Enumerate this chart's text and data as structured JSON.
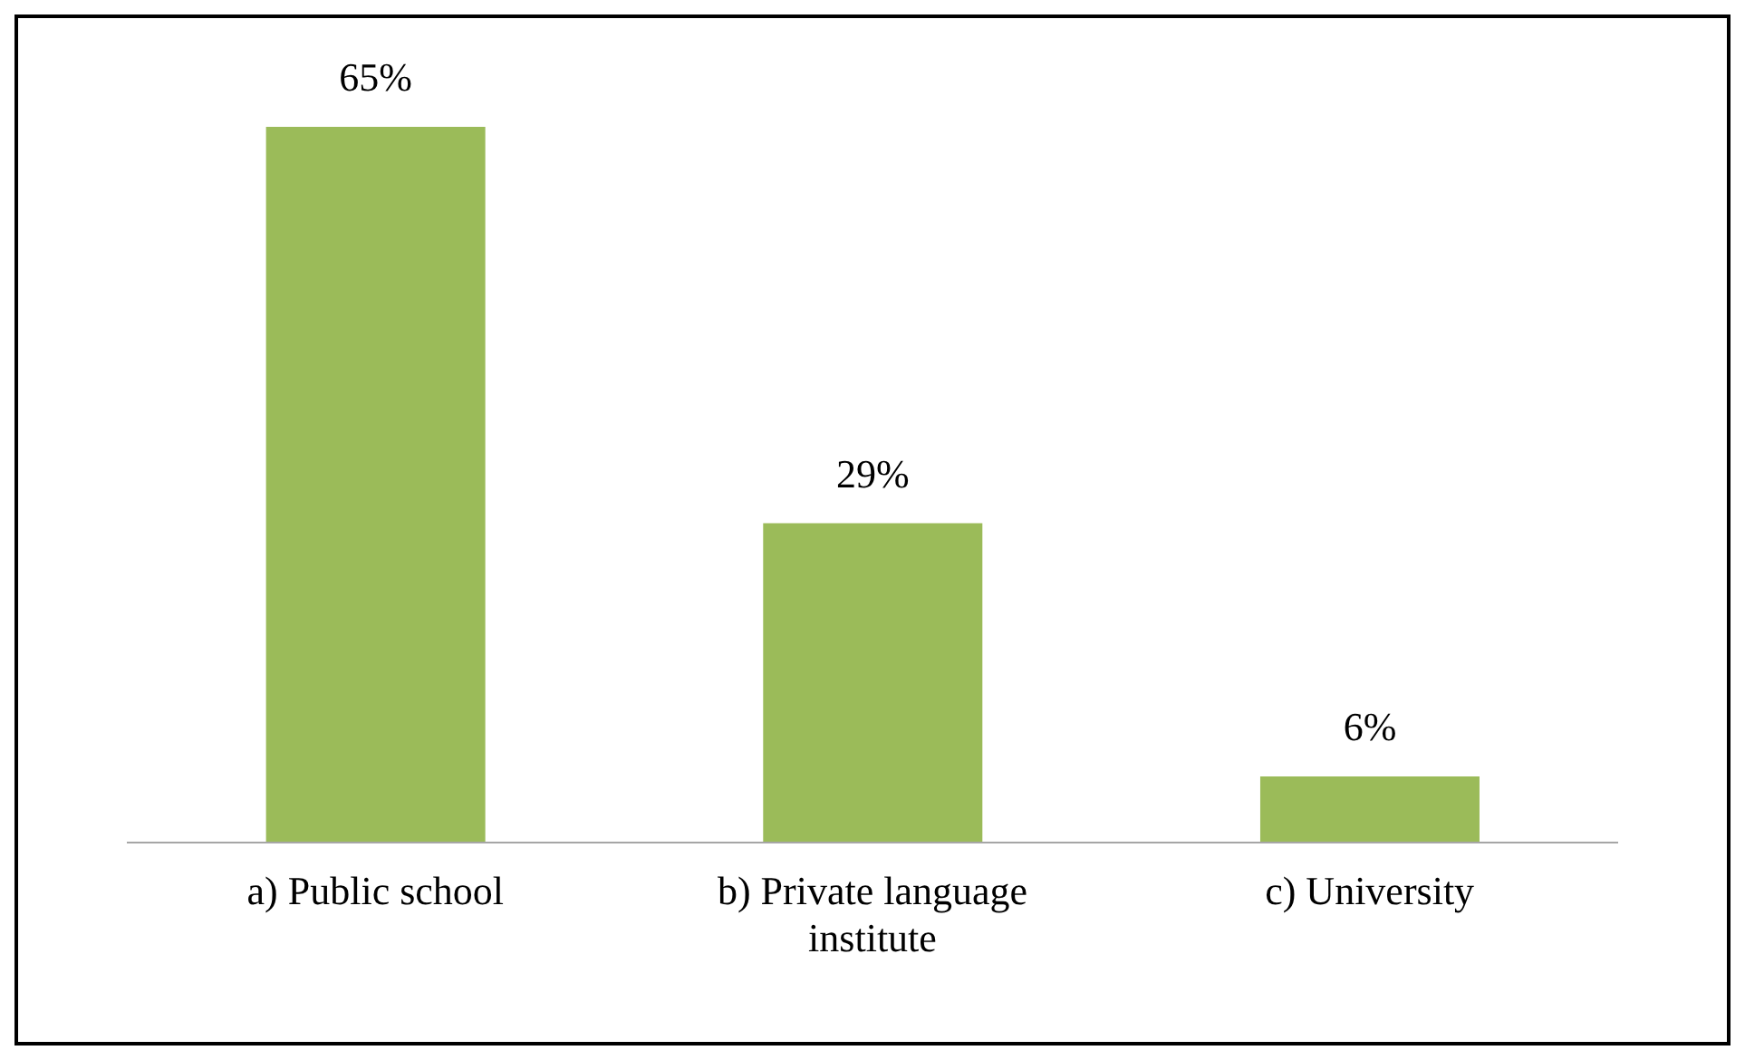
{
  "chart_data": {
    "type": "bar",
    "categories": [
      "a) Public school",
      "b) Private language institute",
      "c) University"
    ],
    "values": [
      65,
      29,
      6
    ],
    "value_labels": [
      "65%",
      "29%",
      "6%"
    ],
    "color": "#9bbb59"
  }
}
